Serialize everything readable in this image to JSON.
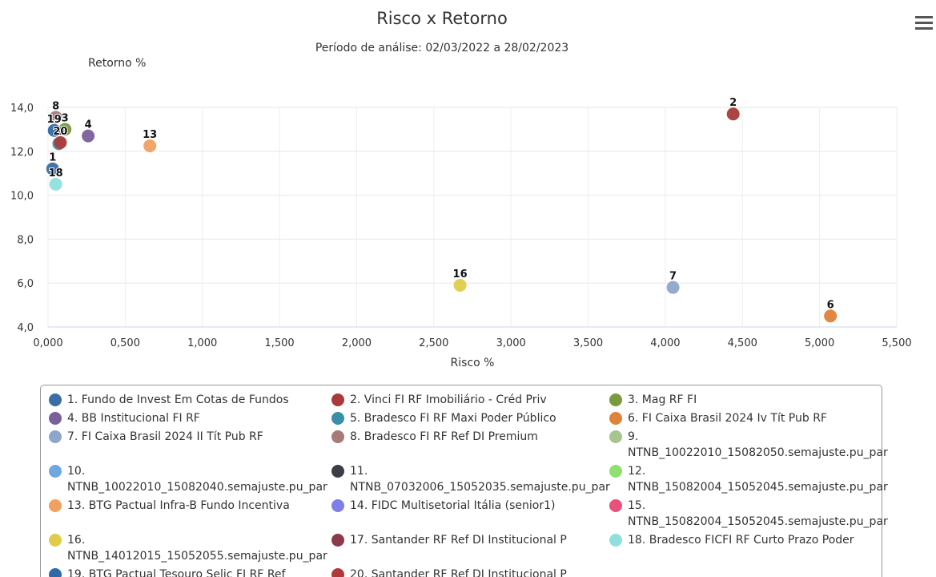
{
  "chart_data": {
    "type": "scatter",
    "title": "Risco x Retorno",
    "subtitle": "Período de análise: 02/03/2022 a 28/02/2023",
    "x_label": "Risco %",
    "y_label": "Retorno %",
    "xlim": [
      0,
      5.5
    ],
    "ylim": [
      4,
      14
    ],
    "xticks": [
      {
        "value": 0,
        "label": "0,000"
      },
      {
        "value": 0.5,
        "label": "0,500"
      },
      {
        "value": 1,
        "label": "1,000"
      },
      {
        "value": 1.5,
        "label": "1,500"
      },
      {
        "value": 2,
        "label": "2,000"
      },
      {
        "value": 2.5,
        "label": "2,500"
      },
      {
        "value": 3,
        "label": "3,000"
      },
      {
        "value": 3.5,
        "label": "3,500"
      },
      {
        "value": 4,
        "label": "4,000"
      },
      {
        "value": 4.5,
        "label": "4,500"
      },
      {
        "value": 5,
        "label": "5,000"
      },
      {
        "value": 5.5,
        "label": "5,500"
      }
    ],
    "yticks": [
      {
        "value": 4,
        "label": "4,0"
      },
      {
        "value": 6,
        "label": "6,0"
      },
      {
        "value": 8,
        "label": "8,0"
      },
      {
        "value": 10,
        "label": "10,0"
      },
      {
        "value": 12,
        "label": "12,0"
      },
      {
        "value": 14,
        "label": "14,0"
      }
    ],
    "grid": true,
    "series": [
      {
        "name": "1. Fundo de Invest Em Cotas de Fundos",
        "color": "#3a6ea5",
        "label": "1",
        "x": [
          0.03
        ],
        "values": [
          11.2
        ]
      },
      {
        "name": "2. Vinci FI RF Imobiliário - Créd Priv",
        "color": "#a83a3a",
        "label": "2",
        "x": [
          4.44
        ],
        "values": [
          13.7
        ]
      },
      {
        "name": "3. Mag RF FI",
        "color": "#7a9a3e",
        "label": "3",
        "x": [
          0.11
        ],
        "values": [
          13.0
        ]
      },
      {
        "name": "4. BB Institucional FI RF",
        "color": "#7a5f9a",
        "label": "4",
        "x": [
          0.26
        ],
        "values": [
          12.7
        ]
      },
      {
        "name": "5. Bradesco FI RF Maxi Poder Público",
        "color": "#3a8fa8",
        "label": "5",
        "x": [
          0.07
        ],
        "values": [
          12.35
        ]
      },
      {
        "name": "6. FI Caixa Brasil 2024 Iv Tít Pub RF",
        "color": "#e0823a",
        "label": "6",
        "x": [
          5.07
        ],
        "values": [
          4.5
        ]
      },
      {
        "name": "7. FI Caixa Brasil 2024 II Tít Pub RF",
        "color": "#8fa5cc",
        "label": "7",
        "x": [
          4.05
        ],
        "values": [
          5.8
        ]
      },
      {
        "name": "8. Bradesco FI RF Ref DI Premium",
        "color": "#a87a7a",
        "label": "8",
        "x": [
          0.05
        ],
        "values": [
          13.55
        ]
      },
      {
        "name": "9. NTNB_10022010_15082050.semajuste.pu_par",
        "color": "#a8c48f",
        "x": [
          null
        ],
        "values": [
          null
        ]
      },
      {
        "name": "10. NTNB_10022010_15082040.semajuste.pu_par",
        "color": "#6fa8e0",
        "x": [
          null
        ],
        "values": [
          null
        ]
      },
      {
        "name": "11. NTNB_07032006_15052035.semajuste.pu_par",
        "color": "#3a3f47",
        "x": [
          null
        ],
        "values": [
          null
        ]
      },
      {
        "name": "12. NTNB_15082004_15052045.semajuste.pu_par",
        "color": "#8fe06f",
        "x": [
          null
        ],
        "values": [
          null
        ]
      },
      {
        "name": "13. BTG Pactual Infra-B Fundo Incentiva",
        "color": "#f0a060",
        "label": "13",
        "x": [
          0.66
        ],
        "values": [
          12.25
        ]
      },
      {
        "name": "14. FIDC Multisetorial Itália (senior1)",
        "color": "#7f7fe8",
        "x": [
          null
        ],
        "values": [
          null
        ]
      },
      {
        "name": "15. NTNB_15082004_15052045.semajuste.pu_par",
        "color": "#e8527a",
        "x": [
          null
        ],
        "values": [
          null
        ]
      },
      {
        "name": "16. NTNB_14012015_15052055.semajuste.pu_par",
        "color": "#e0cc4a",
        "label": "16",
        "x": [
          2.67
        ],
        "values": [
          5.9
        ]
      },
      {
        "name": "17. Santander RF Ref DI Institucional P",
        "color": "#8a3a4a",
        "x": [
          null
        ],
        "values": [
          null
        ]
      },
      {
        "name": "18. Bradesco FICFI RF Curto Prazo Poder",
        "color": "#8fe0dc",
        "label": "18",
        "x": [
          0.05
        ],
        "values": [
          10.5
        ]
      },
      {
        "name": "19. BTG Pactual Tesouro Selic FI RF Ref",
        "color": "#2f6aa8",
        "label": "19",
        "x": [
          0.04
        ],
        "values": [
          12.95
        ]
      },
      {
        "name": "20. Santander RF Ref DI Institucional P",
        "color": "#b03a3a",
        "label": "20",
        "x": [
          0.08
        ],
        "values": [
          12.4
        ]
      }
    ]
  }
}
